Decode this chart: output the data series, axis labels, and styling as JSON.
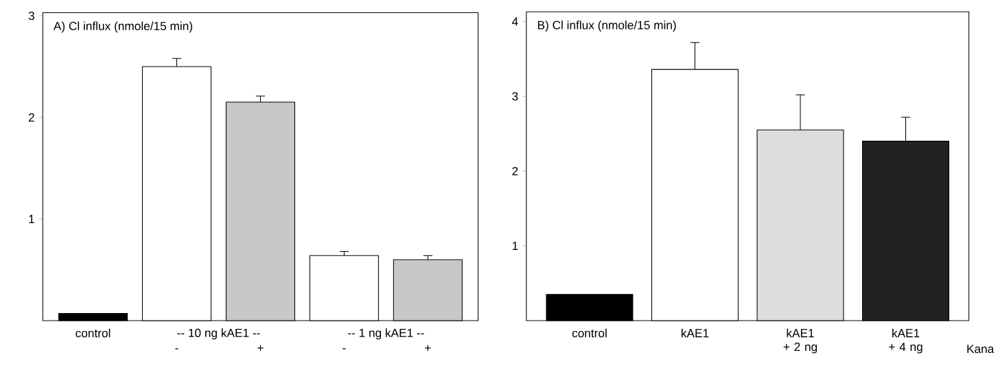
{
  "chart_data": [
    {
      "type": "bar",
      "title": "A) Cl influx (nmole/15 min)",
      "categories": [
        "control",
        "-",
        "+",
        "-",
        "+"
      ],
      "values": [
        0.07,
        2.5,
        2.15,
        0.64,
        0.6
      ],
      "errors": [
        null,
        0.08,
        0.06,
        0.04,
        0.04
      ],
      "colors": [
        "#000000",
        "#ffffff",
        "#c8c8c8",
        "#ffffff",
        "#c8c8c8"
      ],
      "ylim": [
        0,
        3.03
      ],
      "yticks": [
        1,
        2,
        3
      ],
      "annotations": [
        "-- 10 ng  kAE1 --",
        "-- 1 ng  kAE1 --"
      ]
    },
    {
      "type": "bar",
      "title": "B) Cl influx (nmole/15 min)",
      "categories": [
        "control",
        "kAE1",
        "kAE1 + 2 ng",
        "kAE1 + 4 ng"
      ],
      "values": [
        0.35,
        3.36,
        2.55,
        2.4
      ],
      "errors": [
        null,
        0.36,
        0.47,
        0.32
      ],
      "colors": [
        "#000000",
        "#ffffff",
        "#dddddd",
        "#222222"
      ],
      "ylim": [
        0,
        4.13
      ],
      "yticks": [
        1,
        2,
        3,
        4
      ],
      "annotations": [
        "Kana"
      ]
    }
  ]
}
